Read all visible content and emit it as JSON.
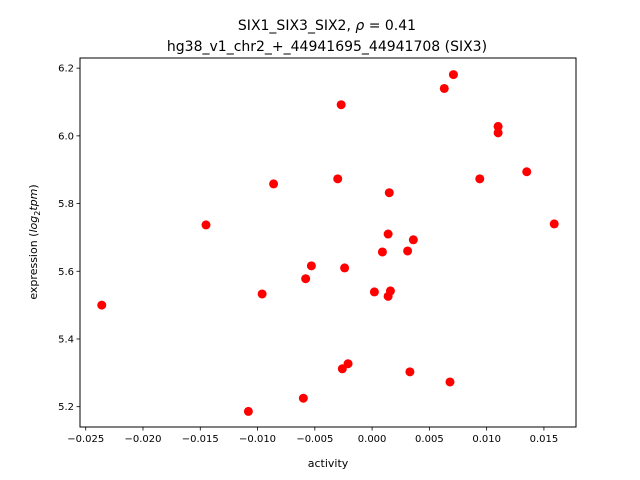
{
  "chart_data": {
    "type": "scatter",
    "title_prefix": "SIX1_SIX3_SIX2, ",
    "title_rho_symbol": "ρ",
    "title_rho_value": " = 0.41",
    "subtitle": "hg38_v1_chr2_+_44941695_44941708 (SIX3)",
    "xlabel": "activity",
    "ylabel_prefix": "expression (",
    "ylabel_math": "log",
    "ylabel_sub": "2",
    "ylabel_math2": "tpm",
    "ylabel_suffix": ")",
    "xlim": [
      -0.0255,
      0.0178
    ],
    "ylim": [
      5.14,
      6.23
    ],
    "x_ticks": [
      -0.025,
      -0.02,
      -0.015,
      -0.01,
      -0.005,
      0.0,
      0.005,
      0.01,
      0.015
    ],
    "x_tick_labels": [
      "−0.025",
      "−0.020",
      "−0.015",
      "−0.010",
      "−0.005",
      "0.000",
      "0.005",
      "0.010",
      "0.015"
    ],
    "y_ticks": [
      5.2,
      5.4,
      5.6,
      5.8,
      6.0,
      6.2
    ],
    "y_tick_labels": [
      "5.2",
      "5.4",
      "5.6",
      "5.8",
      "6.0",
      "6.2"
    ],
    "point_color": "#ff0000",
    "grid": false,
    "points": [
      {
        "x": -0.0236,
        "y": 5.5
      },
      {
        "x": -0.0145,
        "y": 5.737
      },
      {
        "x": -0.0108,
        "y": 5.186
      },
      {
        "x": -0.0096,
        "y": 5.533
      },
      {
        "x": -0.0086,
        "y": 5.858
      },
      {
        "x": -0.006,
        "y": 5.225
      },
      {
        "x": -0.0058,
        "y": 5.578
      },
      {
        "x": -0.0053,
        "y": 5.616
      },
      {
        "x": -0.003,
        "y": 5.873
      },
      {
        "x": -0.0027,
        "y": 6.092
      },
      {
        "x": -0.0026,
        "y": 5.312
      },
      {
        "x": -0.0024,
        "y": 5.61
      },
      {
        "x": -0.0021,
        "y": 5.327
      },
      {
        "x": 0.0002,
        "y": 5.539
      },
      {
        "x": 0.0009,
        "y": 5.657
      },
      {
        "x": 0.0014,
        "y": 5.526
      },
      {
        "x": 0.0014,
        "y": 5.71
      },
      {
        "x": 0.0015,
        "y": 5.832
      },
      {
        "x": 0.0016,
        "y": 5.542
      },
      {
        "x": 0.0031,
        "y": 5.66
      },
      {
        "x": 0.0033,
        "y": 5.303
      },
      {
        "x": 0.0036,
        "y": 5.693
      },
      {
        "x": 0.0063,
        "y": 6.14
      },
      {
        "x": 0.0068,
        "y": 5.273
      },
      {
        "x": 0.0071,
        "y": 6.181
      },
      {
        "x": 0.0094,
        "y": 5.873
      },
      {
        "x": 0.011,
        "y": 6.028
      },
      {
        "x": 0.011,
        "y": 6.009
      },
      {
        "x": 0.0135,
        "y": 5.894
      },
      {
        "x": 0.0159,
        "y": 5.74
      }
    ]
  }
}
